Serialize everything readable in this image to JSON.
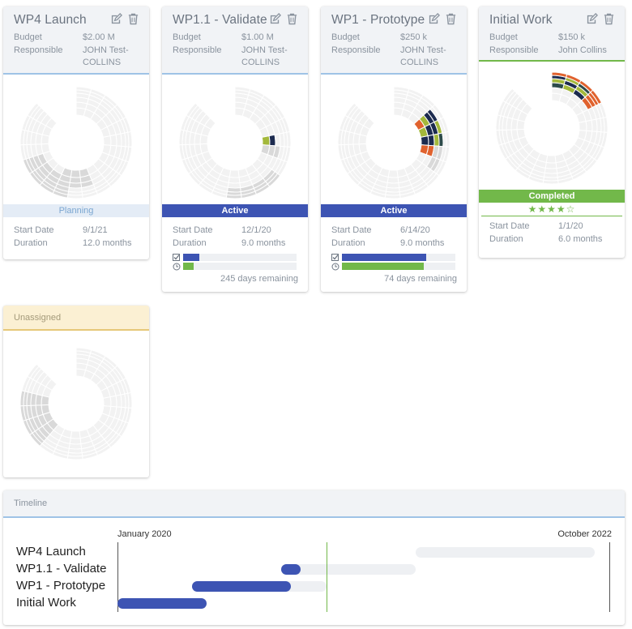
{
  "cards": [
    {
      "title": "WP4 Launch",
      "budget_label": "Budget",
      "budget": "$2.00 M",
      "responsible_label": "Responsible",
      "responsible": "JOHN Test-COLLINS",
      "status": "Planning",
      "start_label": "Start Date",
      "start": "9/1/21",
      "duration_label": "Duration",
      "duration": "12.0 months"
    },
    {
      "title": "WP1.1 - Validate",
      "budget_label": "Budget",
      "budget": "$1.00 M",
      "responsible_label": "Responsible",
      "responsible": "JOHN Test-COLLINS",
      "status": "Active",
      "start_label": "Start Date",
      "start": "12/1/20",
      "duration_label": "Duration",
      "duration": "9.0 months",
      "progress_tasks": 0.14,
      "progress_time": 0.09,
      "remaining": "245 days remaining"
    },
    {
      "title": "WP1 - Prototype",
      "budget_label": "Budget",
      "budget": "$250 k",
      "responsible_label": "Responsible",
      "responsible": "JOHN Test-COLLINS",
      "status": "Active",
      "start_label": "Start Date",
      "start": "6/14/20",
      "duration_label": "Duration",
      "duration": "9.0 months",
      "progress_tasks": 0.74,
      "progress_time": 0.72,
      "remaining": "74 days remaining"
    },
    {
      "title": "Initial Work",
      "budget_label": "Budget",
      "budget": "$150 k",
      "responsible_label": "Responsible",
      "responsible": "John Collins",
      "status": "Completed",
      "rating": "★★★★☆",
      "rating_value": 4,
      "start_label": "Start Date",
      "start": "1/1/20",
      "duration_label": "Duration",
      "duration": "6.0 months"
    }
  ],
  "unassigned": {
    "title": "Unassigned"
  },
  "timeline": {
    "title": "Timeline",
    "start_label": "January 2020",
    "end_label": "October 2022",
    "start_date": "2020-01",
    "end_date": "2022-10",
    "today": "2021-03",
    "rows": [
      {
        "label": "WP4 Launch",
        "start": "2021-09",
        "end": "2022-09",
        "progress": 0
      },
      {
        "label": "WP1.1 - Validate",
        "start": "2020-12",
        "end": "2021-09",
        "progress": 0.14
      },
      {
        "label": "WP1 - Prototype",
        "start": "2020-06",
        "end": "2021-03",
        "progress": 0.74
      },
      {
        "label": "Initial Work",
        "start": "2020-01",
        "end": "2020-07",
        "progress": 1
      }
    ]
  },
  "colors": {
    "accent": "#3d54b3",
    "active": "#3d54b3",
    "completed": "#72b84a",
    "planning_bg": "#e4ecf6",
    "unassigned_bg": "#fbf0d3",
    "segment_empty": "#f2f2f2",
    "segment_inactive": "#d9d9d9",
    "segment_navy": "#1c2b4f",
    "segment_olive": "#a3b83b",
    "segment_teal": "#2d4b4a",
    "segment_orange": "#e0622e"
  }
}
